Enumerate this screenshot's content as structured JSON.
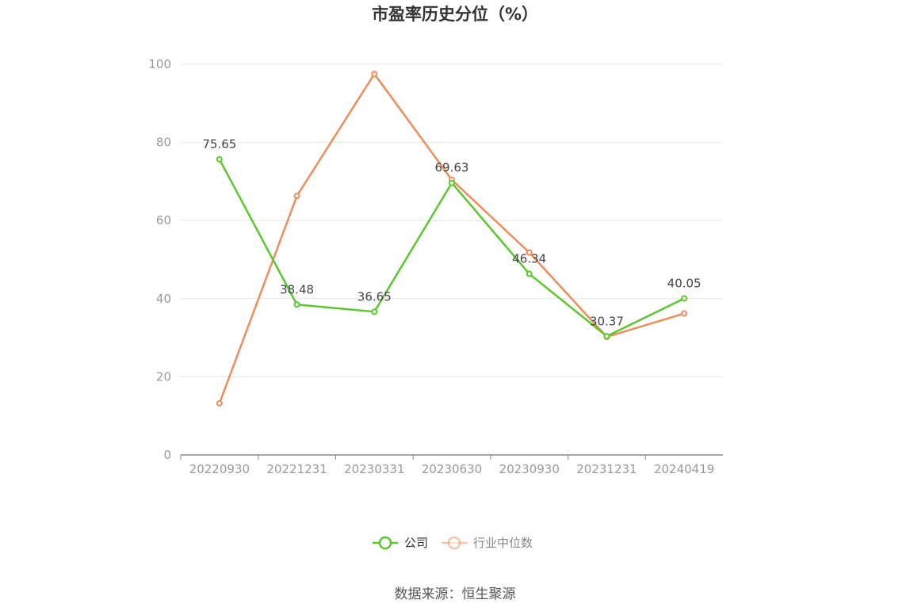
{
  "chart_data": {
    "type": "line",
    "title": "市盈率历史分位（%）",
    "categories": [
      "20220930",
      "20221231",
      "20230331",
      "20230630",
      "20230930",
      "20231231",
      "20240419"
    ],
    "ylim": [
      0,
      100
    ],
    "yticks": [
      0,
      20,
      40,
      60,
      80,
      100
    ],
    "grid": true,
    "legend_position": "bottom",
    "series": [
      {
        "name": "公司",
        "color": "#5ac72b",
        "values": [
          75.65,
          38.48,
          36.65,
          69.63,
          46.34,
          30.37,
          40.05
        ],
        "labels": [
          "75.65",
          "38.48",
          "36.65",
          "69.63",
          "46.34",
          "30.37",
          "40.05"
        ]
      },
      {
        "name": "行业中位数",
        "color": "#f08c5a",
        "values": [
          13.2,
          66.3,
          97.5,
          70.4,
          51.8,
          30.2,
          36.2
        ]
      }
    ]
  },
  "source": "数据来源：恒生聚源"
}
